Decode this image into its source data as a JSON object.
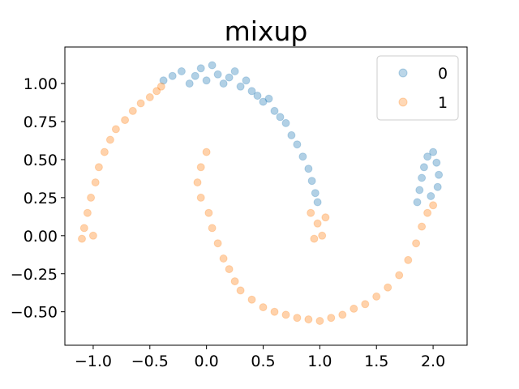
{
  "chart_data": {
    "type": "scatter",
    "title": "mixup",
    "xlabel": "",
    "ylabel": "",
    "xlim": [
      -1.25,
      2.3
    ],
    "ylim": [
      -0.72,
      1.24
    ],
    "xticks": [
      -1.0,
      -0.5,
      0.0,
      0.5,
      1.0,
      1.5,
      2.0
    ],
    "xtick_labels": [
      "−1.0",
      "−0.5",
      "0.0",
      "0.5",
      "1.0",
      "1.5",
      "2.0"
    ],
    "yticks": [
      -0.5,
      -0.25,
      0.0,
      0.25,
      0.5,
      0.75,
      1.0
    ],
    "ytick_labels": [
      "−0.50",
      "−0.25",
      "0.00",
      "0.25",
      "0.50",
      "0.75",
      "1.00"
    ],
    "grid": false,
    "legend_position": "top-right",
    "marker_alpha": 0.15,
    "series": [
      {
        "name": "0",
        "color": "#1f77b4",
        "shape": "upper moon arcs",
        "points": [
          [
            -0.38,
            1.02
          ],
          [
            -0.3,
            1.05
          ],
          [
            -0.22,
            1.08
          ],
          [
            -0.15,
            1.0
          ],
          [
            -0.1,
            1.05
          ],
          [
            -0.05,
            1.1
          ],
          [
            0.0,
            1.02
          ],
          [
            0.05,
            1.12
          ],
          [
            0.1,
            1.06
          ],
          [
            0.15,
            1.0
          ],
          [
            0.2,
            1.04
          ],
          [
            0.25,
            1.08
          ],
          [
            0.3,
            0.98
          ],
          [
            0.35,
            1.02
          ],
          [
            0.4,
            0.95
          ],
          [
            0.45,
            0.92
          ],
          [
            0.5,
            0.88
          ],
          [
            0.55,
            0.9
          ],
          [
            0.6,
            0.82
          ],
          [
            0.65,
            0.78
          ],
          [
            0.7,
            0.74
          ],
          [
            0.75,
            0.66
          ],
          [
            0.8,
            0.6
          ],
          [
            0.85,
            0.52
          ],
          [
            0.9,
            0.44
          ],
          [
            0.93,
            0.36
          ],
          [
            0.96,
            0.28
          ],
          [
            0.98,
            0.22
          ],
          [
            1.86,
            0.22
          ],
          [
            1.88,
            0.3
          ],
          [
            1.9,
            0.38
          ],
          [
            1.92,
            0.45
          ],
          [
            1.95,
            0.52
          ],
          [
            2.0,
            0.55
          ],
          [
            2.03,
            0.48
          ],
          [
            2.05,
            0.4
          ],
          [
            2.04,
            0.32
          ],
          [
            1.98,
            0.26
          ]
        ]
      },
      {
        "name": "1",
        "color": "#ff7f0e",
        "shape": "lower moon arcs",
        "points": [
          [
            -1.08,
            0.05
          ],
          [
            -1.05,
            0.15
          ],
          [
            -1.02,
            0.25
          ],
          [
            -0.98,
            0.35
          ],
          [
            -0.95,
            0.45
          ],
          [
            -0.9,
            0.55
          ],
          [
            -0.85,
            0.63
          ],
          [
            -0.8,
            0.7
          ],
          [
            -0.72,
            0.76
          ],
          [
            -0.65,
            0.82
          ],
          [
            -0.58,
            0.87
          ],
          [
            -0.5,
            0.91
          ],
          [
            -0.44,
            0.95
          ],
          [
            -0.4,
            0.98
          ],
          [
            -1.1,
            -0.02
          ],
          [
            -1.0,
            0.0
          ],
          [
            0.0,
            0.55
          ],
          [
            -0.05,
            0.45
          ],
          [
            -0.08,
            0.35
          ],
          [
            -0.05,
            0.25
          ],
          [
            0.02,
            0.15
          ],
          [
            0.05,
            0.05
          ],
          [
            0.1,
            -0.05
          ],
          [
            0.15,
            -0.15
          ],
          [
            0.2,
            -0.22
          ],
          [
            0.25,
            -0.3
          ],
          [
            0.3,
            -0.36
          ],
          [
            0.4,
            -0.42
          ],
          [
            0.5,
            -0.47
          ],
          [
            0.6,
            -0.5
          ],
          [
            0.7,
            -0.52
          ],
          [
            0.8,
            -0.54
          ],
          [
            0.9,
            -0.55
          ],
          [
            1.0,
            -0.56
          ],
          [
            1.1,
            -0.54
          ],
          [
            1.2,
            -0.52
          ],
          [
            1.3,
            -0.48
          ],
          [
            1.4,
            -0.45
          ],
          [
            1.5,
            -0.4
          ],
          [
            1.6,
            -0.34
          ],
          [
            1.7,
            -0.26
          ],
          [
            1.78,
            -0.16
          ],
          [
            1.85,
            -0.05
          ],
          [
            1.9,
            0.06
          ],
          [
            1.95,
            0.15
          ],
          [
            2.0,
            0.2
          ],
          [
            0.92,
            0.15
          ],
          [
            0.98,
            0.08
          ],
          [
            1.02,
            0.0
          ],
          [
            1.05,
            0.12
          ],
          [
            0.95,
            -0.02
          ]
        ]
      }
    ]
  }
}
